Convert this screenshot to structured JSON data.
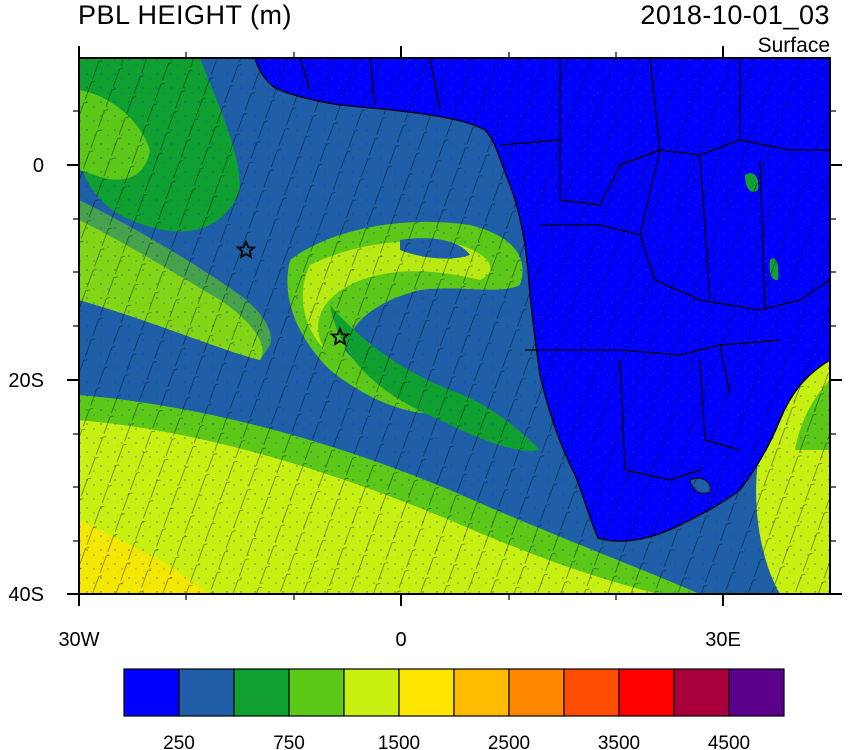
{
  "title": "PBL HEIGHT (m)",
  "datetime": "2018-10-01_03",
  "level": "Surface",
  "lon_labels": [
    "30W",
    "0",
    "30E"
  ],
  "lat_labels": [
    "0",
    "20S",
    "40S"
  ],
  "colorbar": {
    "colors": [
      "#0000ff",
      "#1e5fa8",
      "#10a030",
      "#5cc818",
      "#c8f010",
      "#ffe600",
      "#ffbb00",
      "#ff8800",
      "#ff4d00",
      "#ff0000",
      "#a8003c",
      "#5a008a"
    ],
    "labels": [
      "250",
      "750",
      "1500",
      "2500",
      "3500",
      "4500"
    ]
  },
  "markers": [
    {
      "name": "star-marker-1",
      "symbol": "star"
    },
    {
      "name": "star-marker-2",
      "symbol": "star"
    }
  ]
}
